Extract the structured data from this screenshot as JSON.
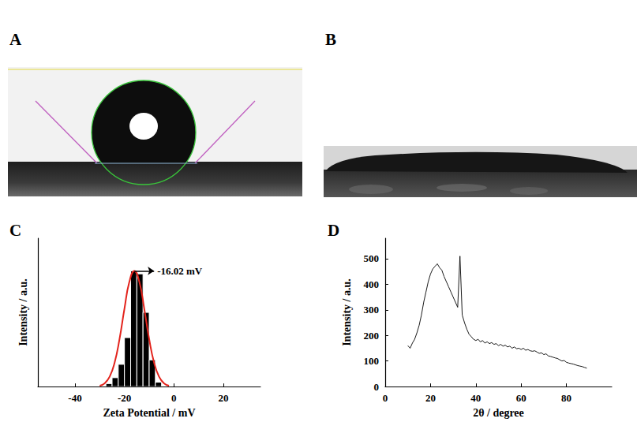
{
  "panel_labels": [
    "A",
    "B",
    "C",
    "D"
  ],
  "chart_data": [
    {
      "type": "histogram",
      "xlabel": "Zeta Potential / mV",
      "ylabel": "Intensity / a.u.",
      "bins": [
        -27.5,
        -25,
        -22.5,
        -20,
        -17.5,
        -15,
        -12.5,
        -10,
        -7.5,
        -5
      ],
      "values": [
        2,
        6,
        15,
        33,
        78,
        76,
        50,
        18,
        3
      ],
      "color": "#000000",
      "fit": {
        "type": "line",
        "color": "#e3231c",
        "x": [
          -30,
          -28,
          -26,
          -24,
          -22,
          -20,
          -18,
          -16,
          -14,
          -12,
          -10,
          -8,
          -6,
          -4,
          -2
        ],
        "values": [
          0.6,
          2.2,
          6.6,
          16,
          32,
          52.5,
          70.7,
          78,
          70.7,
          52.5,
          32,
          16,
          6.6,
          2.2,
          0.6
        ]
      },
      "annotation": {
        "text": "-16.02 mV",
        "x": -16.02,
        "y": 78
      },
      "xlim": [
        -55,
        35
      ],
      "xticks": [
        -40,
        -20,
        0,
        20
      ],
      "ylim": [
        0,
        100
      ],
      "tick_labels": "x",
      "grid": false
    },
    {
      "type": "line",
      "xlabel": "2θ / degree",
      "ylabel": "Intensity / a.u.",
      "color": "#000000",
      "x": [
        10,
        11,
        12,
        13,
        14,
        15,
        16,
        17,
        18,
        19,
        20,
        21,
        22,
        23,
        24,
        25,
        26,
        27,
        28,
        29,
        30,
        31,
        32,
        33,
        34,
        35,
        36,
        37,
        38,
        39,
        40,
        41,
        42,
        43,
        44,
        45,
        46,
        47,
        48,
        49,
        50,
        51,
        52,
        53,
        54,
        55,
        56,
        57,
        58,
        59,
        60,
        61,
        62,
        63,
        64,
        65,
        66,
        67,
        68,
        69,
        70,
        71,
        72,
        73,
        74,
        75,
        76,
        77,
        78,
        79,
        80,
        81,
        82,
        83,
        84,
        85,
        86,
        87,
        88,
        89
      ],
      "values": [
        160,
        150,
        170,
        185,
        210,
        240,
        280,
        330,
        370,
        410,
        440,
        460,
        470,
        480,
        465,
        455,
        430,
        410,
        390,
        370,
        350,
        330,
        310,
        510,
        280,
        250,
        225,
        205,
        195,
        185,
        180,
        185,
        175,
        180,
        170,
        175,
        168,
        172,
        165,
        168,
        160,
        165,
        158,
        162,
        155,
        158,
        150,
        155,
        148,
        150,
        145,
        150,
        142,
        145,
        140,
        138,
        140,
        135,
        130,
        132,
        125,
        128,
        120,
        118,
        115,
        112,
        110,
        105,
        100,
        102,
        95,
        92,
        90,
        88,
        85,
        82,
        80,
        78,
        75,
        72
      ],
      "xlim": [
        0,
        100
      ],
      "xticks": [
        0,
        20,
        40,
        60,
        80
      ],
      "ylim": [
        0,
        580
      ],
      "yticks": [
        0,
        100,
        200,
        300,
        400,
        500
      ],
      "grid": false
    }
  ]
}
